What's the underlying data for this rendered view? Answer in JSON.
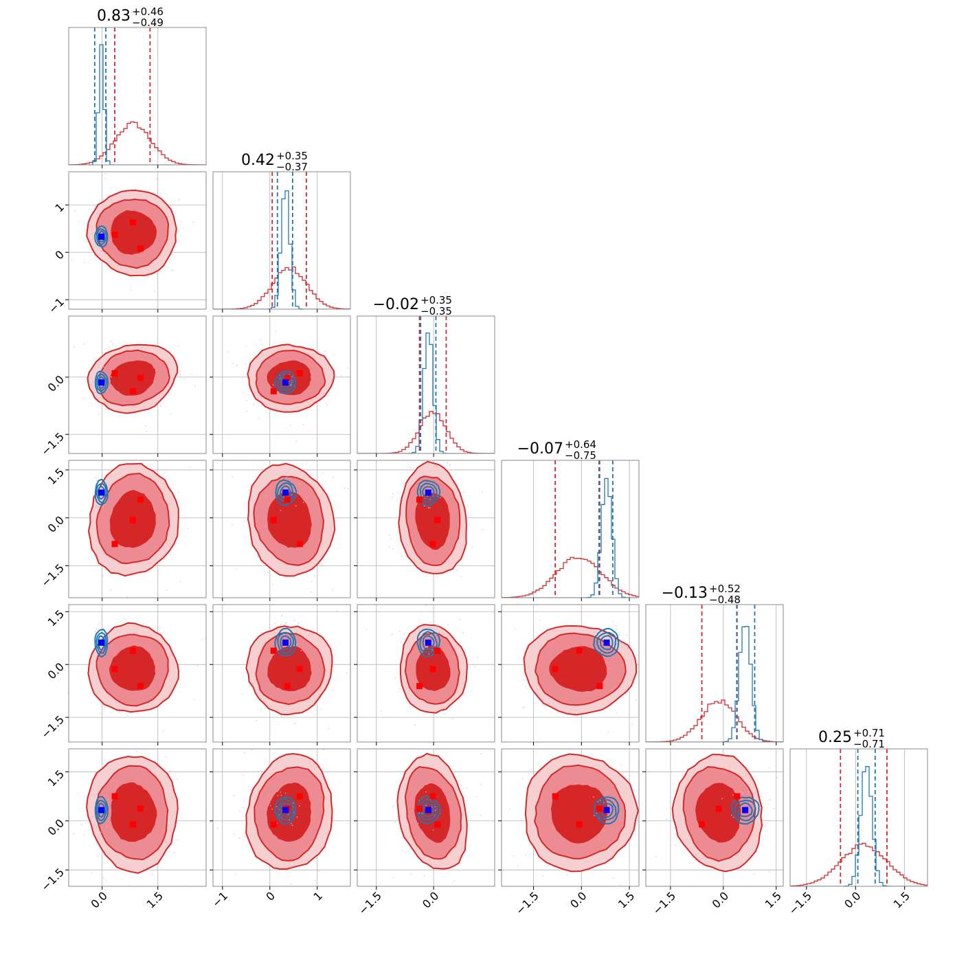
{
  "chart_data": {
    "type": "corner",
    "n_params": 6,
    "colors": {
      "posterior_a": "#d62728",
      "posterior_b": "#1f77b4",
      "truth_a": "#ff0000",
      "truth_b": "#0000ff",
      "grid": "#b0b0b0"
    },
    "grid": true,
    "titles": [
      {
        "median": "0.83",
        "plus": "+0.46",
        "minus": "−0.49"
      },
      {
        "median": "0.42",
        "plus": "+0.35",
        "minus": "−0.37"
      },
      {
        "median": "−0.02",
        "plus": "+0.35",
        "minus": "−0.35"
      },
      {
        "median": "−0.07",
        "plus": "+0.64",
        "minus": "−0.75"
      },
      {
        "median": "−0.13",
        "plus": "+0.52",
        "minus": "−0.48"
      },
      {
        "median": "0.25",
        "plus": "+0.71",
        "minus": "−0.71"
      }
    ],
    "parameters": [
      {
        "range": [
          -0.9,
          2.8
        ],
        "ticks": [
          0.0,
          1.5
        ],
        "tick_labels": [
          "0.0",
          "1.5"
        ],
        "red": {
          "mean": 0.83,
          "sd": 0.48,
          "q": [
            0.34,
            1.29
          ]
        },
        "blue": {
          "mean": -0.02,
          "sd": 0.07,
          "q": [
            -0.2,
            0.1
          ]
        },
        "truth_b": -0.02,
        "truth_a": [
          0.34,
          0.83,
          1.03
        ]
      },
      {
        "range": [
          -1.2,
          1.7
        ],
        "ticks": [
          -1,
          0,
          1
        ],
        "tick_labels": [
          "−1",
          "0",
          "1"
        ],
        "red": {
          "mean": 0.42,
          "sd": 0.36,
          "q": [
            0.05,
            0.77
          ]
        },
        "blue": {
          "mean": 0.33,
          "sd": 0.09,
          "q": [
            0.16,
            0.48
          ]
        },
        "truth_b": 0.33,
        "truth_a": [
          0.08,
          0.37,
          0.63
        ]
      },
      {
        "range": [
          -2.0,
          1.6
        ],
        "ticks": [
          -1.5,
          0.0
        ],
        "tick_labels": [
          "−1.5",
          "0.0"
        ],
        "red": {
          "mean": -0.02,
          "sd": 0.35,
          "q": [
            -0.37,
            0.33
          ]
        },
        "blue": {
          "mean": -0.14,
          "sd": 0.12,
          "q": [
            -0.34,
            0.06
          ]
        },
        "truth_b": -0.14,
        "truth_a": [
          -0.37,
          -0.02,
          0.1
        ]
      },
      {
        "range": [
          -2.5,
          1.8
        ],
        "ticks": [
          -1.5,
          0.0,
          1.5
        ],
        "tick_labels": [
          "−1.5",
          "0.0",
          "1.5"
        ],
        "red": {
          "mean": -0.07,
          "sd": 0.7,
          "q": [
            -0.82,
            0.57
          ]
        },
        "blue": {
          "mean": 0.79,
          "sd": 0.16,
          "q": [
            0.55,
            0.98
          ]
        },
        "truth_b": 0.79,
        "truth_a": [
          -0.82,
          -0.07,
          0.57
        ]
      },
      {
        "range": [
          -2.2,
          1.7
        ],
        "ticks": [
          -1.5,
          0.0,
          1.5
        ],
        "tick_labels": [
          "−1.5",
          "0.0",
          "1.5"
        ],
        "red": {
          "mean": -0.13,
          "sd": 0.5,
          "q": [
            -0.61,
            0.39
          ]
        },
        "blue": {
          "mean": 0.62,
          "sd": 0.16,
          "q": [
            0.38,
            0.89
          ]
        },
        "truth_b": 0.62,
        "truth_a": [
          -0.61,
          -0.13,
          0.39
        ]
      },
      {
        "range": [
          -2.0,
          2.2
        ],
        "ticks": [
          -1.5,
          0.0,
          1.5
        ],
        "tick_labels": [
          "−1.5",
          "0.0",
          "1.5"
        ],
        "red": {
          "mean": 0.25,
          "sd": 0.71,
          "q": [
            -0.46,
            0.96
          ]
        },
        "blue": {
          "mean": 0.33,
          "sd": 0.17,
          "q": [
            0.07,
            0.6
          ]
        },
        "truth_b": 0.33,
        "truth_a": [
          -0.11,
          0.37,
          0.75
        ]
      }
    ]
  }
}
